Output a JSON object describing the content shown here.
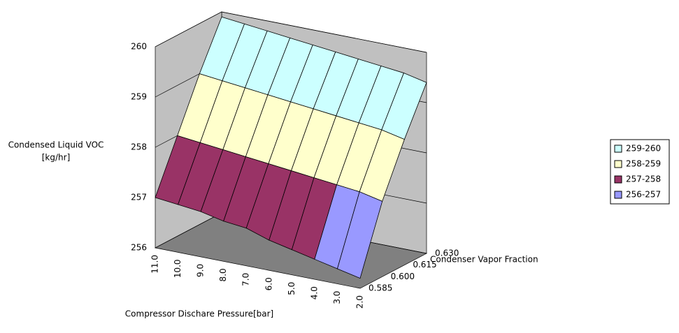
{
  "chart_data": {
    "type": "surface",
    "x_title": "Compressor Dischare Pressure[bar]",
    "y_title": "Condenser Vapor Fraction",
    "z_title": [
      "Condensed Liquid VOC",
      "[kg/hr]"
    ],
    "categories": [
      "11.0",
      "10.0",
      "9.0",
      "8.0",
      "7.0",
      "6.0",
      "5.0",
      "4.0",
      "3.0",
      "2.0"
    ],
    "series": [
      {
        "name": "0.585",
        "values": [
          257.0,
          256.95,
          256.9,
          256.8,
          256.75,
          256.6,
          256.5,
          256.4,
          256.3,
          256.2
        ]
      },
      {
        "name": "0.600",
        "values": [
          258.0,
          257.95,
          257.9,
          257.85,
          257.8,
          257.75,
          257.7,
          257.65,
          257.6,
          257.5
        ]
      },
      {
        "name": "0.615",
        "values": [
          259.0,
          258.95,
          258.9,
          258.85,
          258.8,
          258.75,
          258.7,
          258.65,
          258.6,
          258.5
        ]
      },
      {
        "name": "0.630",
        "values": [
          259.9,
          259.85,
          259.8,
          259.75,
          259.7,
          259.65,
          259.6,
          259.55,
          259.5,
          259.4
        ]
      }
    ],
    "zlim": [
      256,
      260
    ],
    "zticks": [
      256,
      257,
      258,
      259,
      260
    ],
    "bands": [
      {
        "label": "259-260",
        "color": "#ccffff"
      },
      {
        "label": "258-259",
        "color": "#ffffcc"
      },
      {
        "label": "257-258",
        "color": "#993366"
      },
      {
        "label": "256-257",
        "color": "#9999ff"
      }
    ],
    "grid": true
  }
}
